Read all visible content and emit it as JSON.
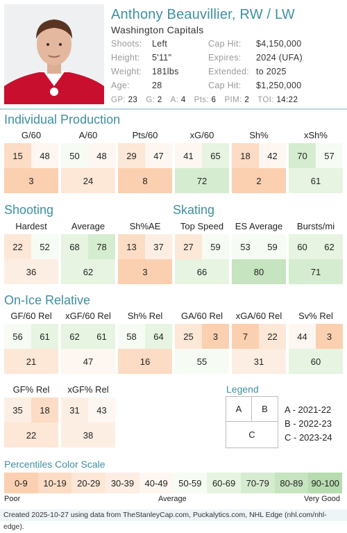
{
  "player": {
    "name": "Anthony Beauvillier, RW / LW",
    "team": "Washington Capitals",
    "info_left": [
      {
        "k": "Shoots:",
        "v": "Left"
      },
      {
        "k": "Height:",
        "v": "5'11\""
      },
      {
        "k": "Weight:",
        "v": "181lbs"
      },
      {
        "k": "Age:",
        "v": "28"
      }
    ],
    "info_right": [
      {
        "k": "Cap Hit:",
        "v": "$4,150,000"
      },
      {
        "k": "Expires:",
        "v": "2024 (UFA)"
      },
      {
        "k": "Extended:",
        "v": "to 2025"
      },
      {
        "k": "Cap Hit:",
        "v": "$1,250,000"
      }
    ],
    "stats": [
      {
        "k": "GP:",
        "v": "23"
      },
      {
        "k": "G:",
        "v": "2"
      },
      {
        "k": "A:",
        "v": "4"
      },
      {
        "k": "Pts:",
        "v": "6"
      },
      {
        "k": "PIM:",
        "v": "2"
      },
      {
        "k": "TOI:",
        "v": "14:22"
      }
    ]
  },
  "sections": {
    "individual": "Individual Production",
    "shooting": "Shooting",
    "skating": "Skating",
    "onice": "On-Ice Relative"
  },
  "metrics": {
    "individual": [
      {
        "title": "G/60",
        "a": "15",
        "b": "48",
        "c": "3"
      },
      {
        "title": "A/60",
        "a": "50",
        "b": "48",
        "c": "24"
      },
      {
        "title": "Pts/60",
        "a": "29",
        "b": "47",
        "c": "8"
      },
      {
        "title": "xG/60",
        "a": "41",
        "b": "65",
        "c": "72"
      },
      {
        "title": "Sh%",
        "a": "18",
        "b": "42",
        "c": "2"
      },
      {
        "title": "xSh%",
        "a": "70",
        "b": "57",
        "c": "61"
      }
    ],
    "shooting_skating": [
      {
        "title": "Hardest",
        "a": "22",
        "b": "52",
        "c": "36"
      },
      {
        "title": "Average",
        "a": "68",
        "b": "78",
        "c": "62"
      },
      {
        "title": "Sh%AE",
        "a": "13",
        "b": "37",
        "c": "3"
      },
      {
        "title": "Top Speed",
        "a": "27",
        "b": "59",
        "c": "66"
      },
      {
        "title": "ES Average",
        "a": "53",
        "b": "59",
        "c": "80"
      },
      {
        "title": "Bursts/mi",
        "a": "60",
        "b": "62",
        "c": "71"
      }
    ],
    "onice": [
      {
        "title": "GF/60 Rel",
        "a": "56",
        "b": "61",
        "c": "21"
      },
      {
        "title": "xGF/60 Rel",
        "a": "62",
        "b": "61",
        "c": "47"
      },
      {
        "title": "Sh% Rel",
        "a": "58",
        "b": "64",
        "c": "16"
      },
      {
        "title": "GA/60 Rel",
        "a": "25",
        "b": "3",
        "c": "55"
      },
      {
        "title": "xGA/60 Rel",
        "a": "7",
        "b": "22",
        "c": "31"
      },
      {
        "title": "Sv% Rel",
        "a": "44",
        "b": "3",
        "c": "60"
      }
    ],
    "onice2": [
      {
        "title": "GF% Rel",
        "a": "35",
        "b": "18",
        "c": "22"
      },
      {
        "title": "xGF% Rel",
        "a": "31",
        "b": "43",
        "c": "38"
      }
    ]
  },
  "legend": {
    "title": "Legend",
    "a": "A",
    "b": "B",
    "c": "C",
    "items": [
      "A - 2021-22",
      "B - 2022-23",
      "C - 2023-24"
    ]
  },
  "scale": {
    "title": "Percentiles Color Scale",
    "bins": [
      "0-9",
      "10-19",
      "20-29",
      "30-39",
      "40-49",
      "50-59",
      "60-69",
      "70-79",
      "80-89",
      "90-100"
    ],
    "colors": [
      "#fbd0b0",
      "#fcdcc4",
      "#fde7d7",
      "#fdeee4",
      "#fef6f0",
      "#f6fbf4",
      "#e6f4e1",
      "#d6ecd0",
      "#c6e4bf",
      "#b6dcaf"
    ],
    "poor": "Poor",
    "average": "Average",
    "very_good": "Very Good"
  },
  "footer": "Created 2025-10-27 using data from TheStanleyCap.com, Puckalytics.com, NHL Edge (nhl.com/nhl-edge)."
}
